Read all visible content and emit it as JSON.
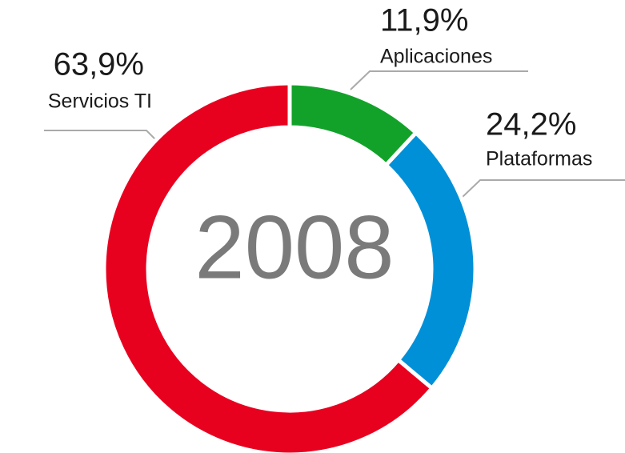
{
  "chart_data": {
    "type": "donut",
    "center_text": "2008",
    "categories": [
      "Aplicaciones",
      "Plataformas",
      "Servicios TI"
    ],
    "values": [
      11.9,
      24.2,
      63.9
    ],
    "value_labels": [
      "11,9%",
      "24,2%",
      "63,9%"
    ],
    "colors": [
      "#12a22a",
      "#0090d8",
      "#e8001f"
    ]
  }
}
